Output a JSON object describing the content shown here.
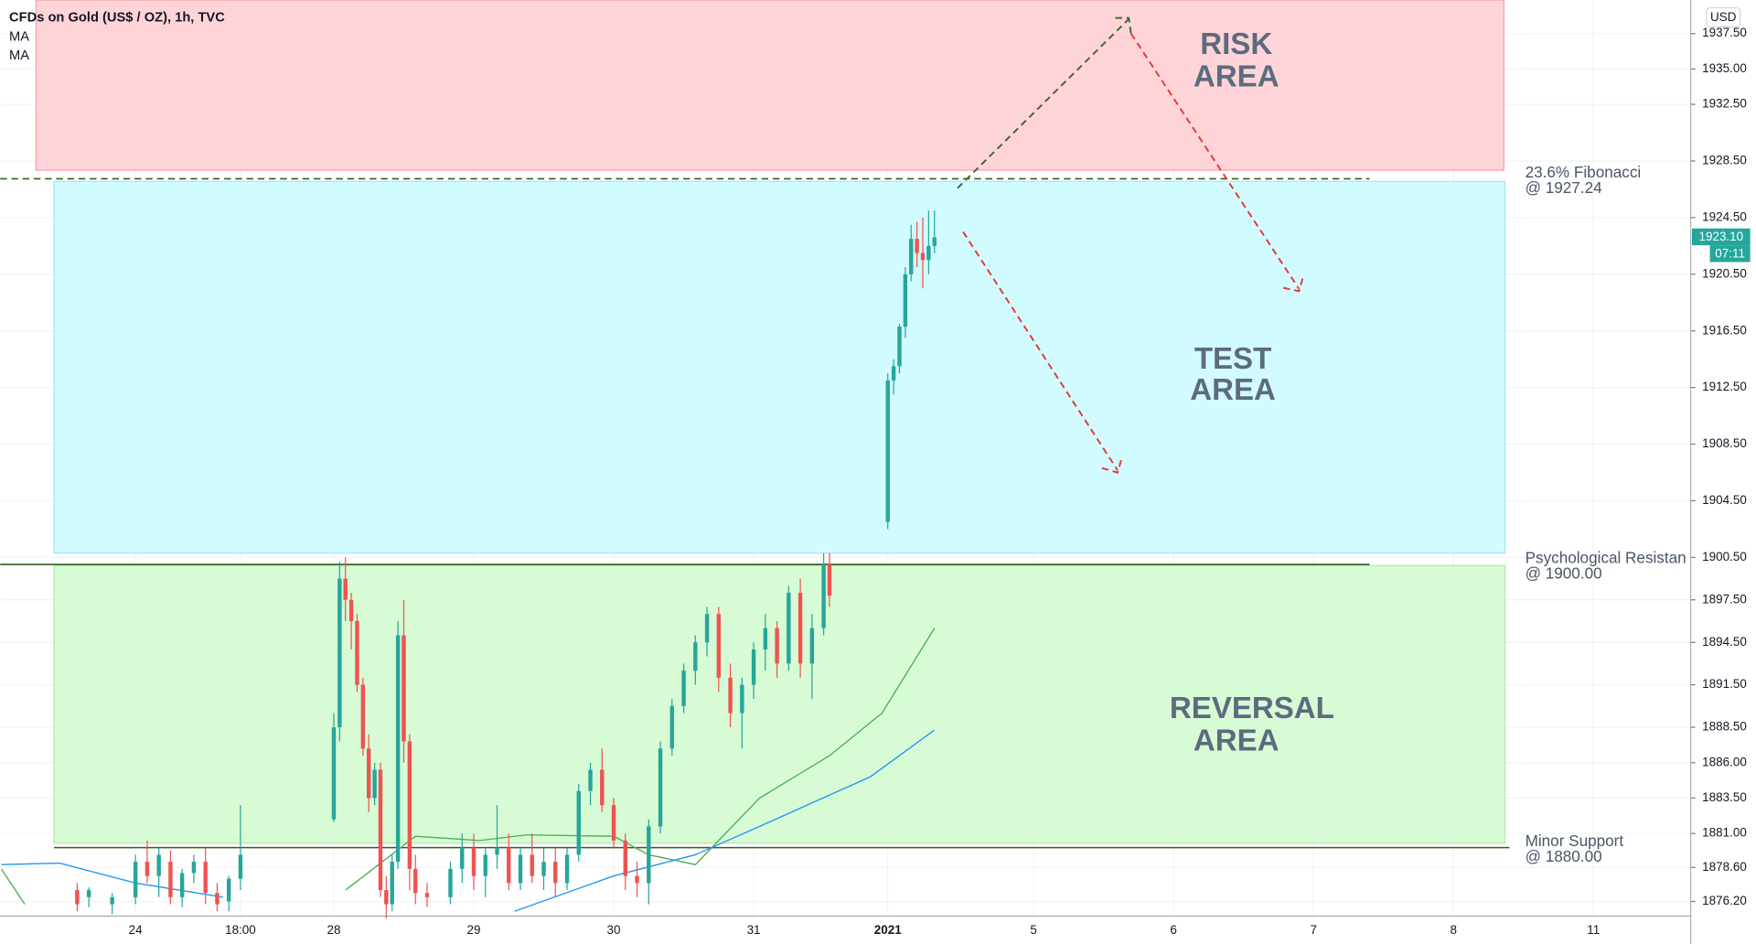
{
  "chart_data": {
    "type": "candlestick",
    "title": "CFDs on Gold (US$ / OZ), 1h, TVC",
    "y_axis_label": "USD",
    "ylim": [
      1875.17,
      1939.87
    ],
    "xlim": [
      -23.2,
      266.7
    ],
    "yticks": [
      {
        "value": 1937.5,
        "label": "1937.50"
      },
      {
        "value": 1935,
        "label": "1935.00"
      },
      {
        "value": 1932.5,
        "label": "1932.50"
      },
      {
        "value": 1928.5,
        "label": "1928.50"
      },
      {
        "value": 1924.5,
        "label": "1924.50"
      },
      {
        "value": 1920.5,
        "label": "1920.50"
      },
      {
        "value": 1916.5,
        "label": "1916.50"
      },
      {
        "value": 1912.5,
        "label": "1912.50"
      },
      {
        "value": 1908.5,
        "label": "1908.50"
      },
      {
        "value": 1904.5,
        "label": "1904.50"
      },
      {
        "value": 1900.5,
        "label": "1900.50"
      },
      {
        "value": 1897.5,
        "label": "1897.50"
      },
      {
        "value": 1894.5,
        "label": "1894.50"
      },
      {
        "value": 1891.5,
        "label": "1891.50"
      },
      {
        "value": 1888.5,
        "label": "1888.50"
      },
      {
        "value": 1886,
        "label": "1886.00"
      },
      {
        "value": 1883.5,
        "label": "1883.50"
      },
      {
        "value": 1881,
        "label": "1881.00"
      },
      {
        "value": 1878.6,
        "label": "1878.60"
      },
      {
        "value": 1876.2,
        "label": "1876.20"
      }
    ],
    "xticks": [
      {
        "value": 0,
        "label": "24"
      },
      {
        "value": 18,
        "label": "18:00"
      },
      {
        "value": 34,
        "label": "28"
      },
      {
        "value": 58,
        "label": "29"
      },
      {
        "value": 82,
        "label": "30"
      },
      {
        "value": 106,
        "label": "31"
      },
      {
        "value": 129,
        "label": "2021"
      },
      {
        "value": 154,
        "label": "5"
      },
      {
        "value": 178,
        "label": "6"
      },
      {
        "value": 202,
        "label": "7"
      },
      {
        "value": 226,
        "label": "8"
      },
      {
        "value": 250,
        "label": "11"
      }
    ],
    "grid": true,
    "up_color": "#26a69a",
    "down_color": "#ef5350",
    "candles": {
      "x": [
        -10,
        -8,
        -4,
        0,
        2,
        4,
        6,
        8,
        10,
        12,
        14,
        16,
        18,
        34,
        35,
        36,
        37,
        38,
        39,
        40,
        41,
        42,
        43,
        44,
        45,
        46,
        47,
        48,
        50,
        54,
        56,
        58,
        60,
        62,
        64,
        66,
        68,
        70,
        72,
        74,
        76,
        78,
        80,
        82,
        84,
        86,
        88,
        90,
        92,
        94,
        96,
        98,
        100,
        102,
        104,
        106,
        108,
        110,
        112,
        114,
        116,
        118,
        119,
        129,
        130,
        131,
        132,
        133,
        134,
        135,
        136,
        137
      ],
      "open": [
        1877.0,
        1876.5,
        1876.0,
        1876.5,
        1879.0,
        1878.0,
        1879.0,
        1876.5,
        1878.2,
        1879.0,
        1876.8,
        1876.2,
        1877.8,
        1882.0,
        1888.5,
        1899.0,
        1897.5,
        1896.0,
        1891.5,
        1887.0,
        1883.5,
        1885.5,
        1877.0,
        1876.0,
        1879.0,
        1895.0,
        1887.5,
        1878.5,
        1876.8,
        1876.5,
        1878.5,
        1880.0,
        1878.0,
        1879.5,
        1880.0,
        1877.5,
        1879.5,
        1878.0,
        1879.0,
        1877.5,
        1879.5,
        1884.0,
        1885.5,
        1883.0,
        1880.5,
        1878.0,
        1877.5,
        1881.5,
        1887.0,
        1890.0,
        1892.5,
        1894.5,
        1896.5,
        1892.0,
        1889.5,
        1891.5,
        1894.0,
        1895.5,
        1893.0,
        1898.0,
        1893.0,
        1895.5,
        1900.0,
        1903.0,
        1913.0,
        1914.0,
        1916.8,
        1920.5,
        1923.0,
        1922.0,
        1921.5,
        1922.5
      ],
      "high": [
        1877.5,
        1877.2,
        1876.8,
        1879.5,
        1880.5,
        1880.0,
        1879.8,
        1878.5,
        1879.5,
        1880.0,
        1877.5,
        1878.0,
        1883.0,
        1889.5,
        1900.2,
        1900.5,
        1898.0,
        1896.5,
        1892.0,
        1888.0,
        1886.0,
        1886.0,
        1878.0,
        1879.5,
        1896.0,
        1897.5,
        1888.0,
        1879.5,
        1877.5,
        1879.0,
        1881.0,
        1881.0,
        1880.0,
        1883.0,
        1881.0,
        1880.0,
        1881.0,
        1880.0,
        1880.0,
        1880.0,
        1884.5,
        1886.0,
        1887.0,
        1883.5,
        1881.0,
        1879.0,
        1882.0,
        1887.5,
        1890.5,
        1893.0,
        1895.0,
        1897.0,
        1897.0,
        1893.0,
        1892.0,
        1894.5,
        1896.5,
        1896.0,
        1898.5,
        1899.0,
        1896.5,
        1900.8,
        1900.8,
        1913.5,
        1914.5,
        1917.0,
        1921.0,
        1924.0,
        1924.2,
        1924.5,
        1925.0,
        1925.0
      ],
      "low": [
        1875.5,
        1875.8,
        1875.3,
        1876.0,
        1877.5,
        1876.5,
        1876.0,
        1875.8,
        1877.5,
        1876.0,
        1875.5,
        1875.5,
        1877.0,
        1881.8,
        1887.5,
        1896.0,
        1894.0,
        1891.0,
        1886.5,
        1882.5,
        1883.0,
        1876.5,
        1875.0,
        1875.5,
        1878.5,
        1886.0,
        1877.0,
        1876.0,
        1875.8,
        1876.0,
        1877.5,
        1877.0,
        1876.5,
        1878.5,
        1877.0,
        1877.0,
        1877.5,
        1877.0,
        1876.5,
        1877.0,
        1879.0,
        1883.0,
        1882.5,
        1880.0,
        1877.0,
        1876.5,
        1876.0,
        1881.0,
        1886.5,
        1889.5,
        1891.5,
        1893.5,
        1891.0,
        1888.5,
        1887.0,
        1890.5,
        1892.5,
        1892.0,
        1892.5,
        1892.0,
        1890.5,
        1895.0,
        1897.0,
        1902.5,
        1912.0,
        1913.5,
        1916.0,
        1920.0,
        1921.0,
        1919.5,
        1920.5,
        1922.0
      ],
      "close": [
        1876.0,
        1877.0,
        1876.5,
        1879.0,
        1878.0,
        1879.5,
        1876.5,
        1878.2,
        1879.0,
        1876.8,
        1876.0,
        1877.8,
        1879.5,
        1888.5,
        1899.0,
        1897.5,
        1896.0,
        1891.5,
        1887.0,
        1883.5,
        1885.5,
        1877.0,
        1876.0,
        1879.0,
        1895.0,
        1887.5,
        1878.5,
        1876.8,
        1876.5,
        1878.5,
        1880.0,
        1878.0,
        1879.5,
        1880.0,
        1877.5,
        1879.5,
        1878.0,
        1879.0,
        1877.5,
        1879.5,
        1884.0,
        1885.5,
        1883.0,
        1880.5,
        1878.0,
        1877.5,
        1881.5,
        1887.0,
        1890.0,
        1892.5,
        1894.5,
        1896.5,
        1892.0,
        1889.5,
        1891.5,
        1894.0,
        1895.5,
        1893.0,
        1898.0,
        1893.0,
        1895.5,
        1900.0,
        1897.8,
        1913.0,
        1914.0,
        1916.8,
        1920.5,
        1923.0,
        1922.0,
        1921.5,
        1922.5,
        1923.1
      ]
    },
    "series": [
      {
        "name": "MA",
        "color": "#4caf50",
        "x": [
          -23,
          -19,
          null,
          36,
          48,
          59,
          67,
          82,
          88,
          96,
          107,
          119,
          128,
          137
        ],
        "values": [
          1878.5,
          1876,
          null,
          1877,
          1880.8,
          1880.5,
          1880.9,
          1880.8,
          1879.5,
          1878.8,
          1883.5,
          1886.5,
          1889.5,
          1895.5
        ]
      },
      {
        "name": "MA",
        "color": "#2196f3",
        "x": [
          -23,
          -13,
          0,
          15,
          null,
          65,
          82,
          96,
          107,
          126,
          137
        ],
        "values": [
          1878.8,
          1878.9,
          1877.5,
          1876.5,
          null,
          1875.5,
          1878,
          1879.5,
          1881.5,
          1885,
          1888.3
        ]
      }
    ],
    "levels": [
      {
        "value": 1927.24,
        "lines": [
          "23.6% Fibonacci",
          "@ 1927.24"
        ],
        "style": "dashed"
      },
      {
        "value": 1900,
        "lines": [
          "Psychological Resistan",
          "@ 1900.00"
        ],
        "style": "solid"
      },
      {
        "value": 1880,
        "lines": [
          "Minor Support",
          "@ 1880.00"
        ],
        "style": "solid"
      }
    ],
    "zones": [
      [
        "RISK",
        "AREA"
      ],
      [
        "TEST",
        "AREA"
      ],
      [
        "REVERSAL",
        "AREA"
      ]
    ],
    "last_price": {
      "value": 1923.1,
      "label": "1923.10"
    },
    "countdown": "07:11"
  }
}
